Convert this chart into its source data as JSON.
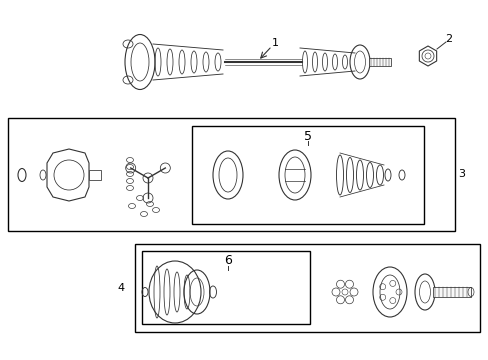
{
  "bg_color": "#ffffff",
  "border_color": "#000000",
  "line_color": "#333333",
  "fig_width": 4.89,
  "fig_height": 3.6,
  "dpi": 100,
  "label_1": "1",
  "label_2": "2",
  "label_3": "3",
  "label_4": "4",
  "label_5": "5",
  "label_6": "6"
}
